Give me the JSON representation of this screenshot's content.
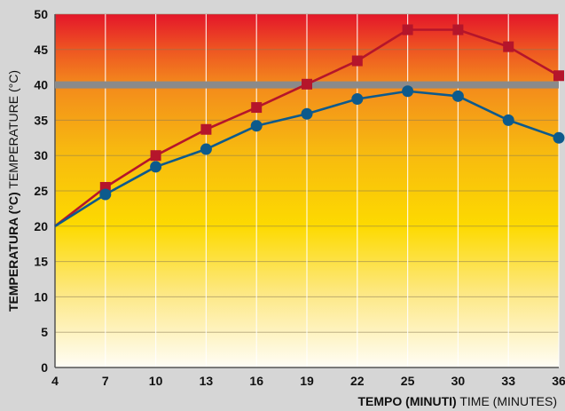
{
  "chart_data": {
    "type": "line",
    "xlabel_bold": "TEMPO (MINUTI)",
    "xlabel_light": "TIME (MINUTES)",
    "ylabel_bold": "TEMPERATURA (°C)",
    "ylabel_light": "TEMPERATURE (°C)",
    "x": [
      4,
      7,
      10,
      13,
      16,
      19,
      22,
      25,
      30,
      33,
      36
    ],
    "x_tick_labels": [
      "4",
      "7",
      "10",
      "13",
      "16",
      "19",
      "22",
      "25",
      "30",
      "33",
      "36"
    ],
    "y_ticks": [
      0,
      5,
      10,
      15,
      20,
      25,
      30,
      35,
      40,
      45,
      50
    ],
    "ylim": [
      0,
      50
    ],
    "grid": true,
    "threshold_line": 40,
    "series": [
      {
        "marker": "square",
        "color": "#b5152b",
        "values": [
          20,
          25.5,
          30,
          33.7,
          36.8,
          40.1,
          43.4,
          47.8,
          47.8,
          45.4,
          41.3
        ]
      },
      {
        "marker": "circle",
        "color": "#0d5a8c",
        "values": [
          20,
          24.5,
          28.4,
          30.9,
          34.2,
          35.9,
          38.0,
          39.1,
          38.4,
          35.0,
          32.5
        ]
      }
    ]
  }
}
